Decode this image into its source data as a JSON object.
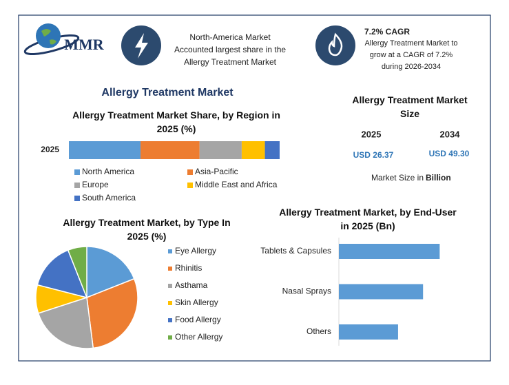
{
  "header": {
    "logo": "MMR",
    "highlight_1": [
      "North-America Market",
      "Accounted largest share in the",
      "Allergy Treatment Market"
    ],
    "highlight_2": {
      "title": "7.2% CAGR",
      "lines": [
        "Allergy Treatment Market to",
        "grow at a CAGR of  7.2%",
        "during 2026-2034"
      ]
    }
  },
  "main_title": "Allergy Treatment Market",
  "market_size": {
    "title": "Allergy Treatment Market Size",
    "years": [
      "2025",
      "2034"
    ],
    "values": [
      "USD 26.37",
      "USD 49.30"
    ],
    "note": "Market Size in",
    "unit": "Billion"
  },
  "chart_data": [
    {
      "type": "stacked-bar",
      "title": "Allergy Treatment Market Share, by Region in 2025 (%)",
      "categories": [
        "2025"
      ],
      "xlim": [
        0,
        100
      ],
      "series": [
        {
          "name": "North America",
          "color": "#5b9bd5",
          "values": [
            34
          ]
        },
        {
          "name": "Asia-Pacific",
          "color": "#ed7d31",
          "values": [
            28
          ]
        },
        {
          "name": "Europe",
          "color": "#a5a5a5",
          "values": [
            20
          ]
        },
        {
          "name": "Middle East and Africa",
          "color": "#ffc000",
          "values": [
            11
          ]
        },
        {
          "name": "South America",
          "color": "#4472c4",
          "values": [
            7
          ]
        }
      ]
    },
    {
      "type": "pie",
      "title": "Allergy Treatment Market, by Type In 2025 (%)",
      "categories": [
        "Eye Allergy",
        "Rhinitis",
        "Asthama",
        "Skin Allergy",
        "Food Allergy",
        "Other Allergy"
      ],
      "values": [
        19,
        29,
        22,
        9,
        15,
        6
      ],
      "colors": [
        "#5b9bd5",
        "#ed7d31",
        "#a5a5a5",
        "#ffc000",
        "#4472c4",
        "#70ad47"
      ]
    },
    {
      "type": "hbar",
      "title": "Allergy Treatment Market, by End-User in 2025 (Bn)",
      "categories": [
        "Tablets & Capsules",
        "Nasal Sprays",
        "Others"
      ],
      "values": [
        10.9,
        9.1,
        6.4
      ],
      "color": "#5b9bd5",
      "xlim": [
        0,
        14
      ]
    }
  ]
}
